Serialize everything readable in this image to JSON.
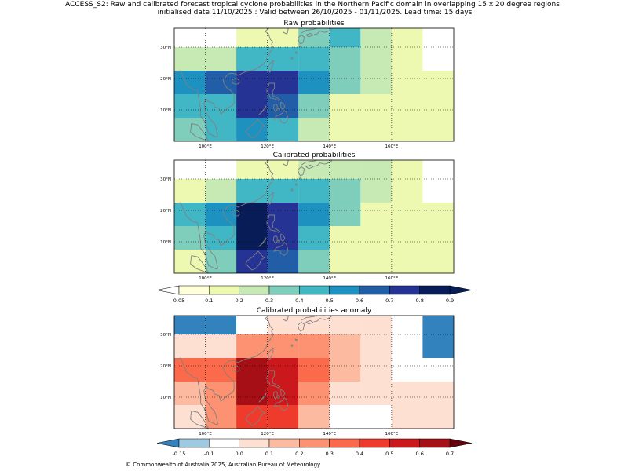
{
  "header": {
    "title_line1": "ACCESS_S2: Raw and calibrated forecast tropical cyclone probabilities in the Northern Pacific domain in overlapping 15 x 20 degree regions",
    "title_line2": "initialised date 11/10/2025 :  Valid between 26/10/2025 - 01/11/2025. Lead time: 15 days"
  },
  "footer": {
    "copyright": "© Commonwealth of Australia 2025, Australian Bureau of Meteorology"
  },
  "colors": {
    "prob_colors": [
      "#ffffd9",
      "#edf8b1",
      "#c7e9b4",
      "#7fcdbb",
      "#41b6c4",
      "#1d91c0",
      "#225ea8",
      "#253494",
      "#081d58"
    ],
    "prob_under": "#ffffff",
    "prob_over": "#081d58",
    "anom_colors": [
      "#9ecae1",
      "#ffffff",
      "#fee0d2",
      "#fcbba1",
      "#fc9272",
      "#fb6a4a",
      "#ef3b2c",
      "#cb181d",
      "#a50f15"
    ],
    "anom_under": "#3182bd",
    "anom_over": "#67000d",
    "coast": "#808080",
    "grid": "#000000"
  },
  "chart_data": [
    {
      "type": "heatmap",
      "title": "Raw probabilities",
      "xlim": [
        90,
        180
      ],
      "ylim": [
        0,
        36
      ],
      "xticks": [
        100,
        120,
        140,
        160
      ],
      "xtick_labels": [
        "100°E",
        "120°E",
        "140°E",
        "160°E"
      ],
      "yticks": [
        10,
        20,
        30
      ],
      "ytick_labels": [
        "10°N",
        "20°N",
        "30°N"
      ],
      "grid": true,
      "x_edges": [
        90,
        100,
        110,
        120,
        130,
        140,
        150,
        160,
        170,
        180
      ],
      "y_edges": [
        36,
        30,
        22.5,
        15,
        7.5,
        0
      ],
      "values": [
        [
          0.03,
          0.03,
          0.15,
          0.15,
          0.35,
          0.4,
          0.25,
          0.1,
          0.03
        ],
        [
          0.25,
          0.25,
          0.45,
          0.45,
          0.45,
          0.35,
          0.25,
          0.1,
          0.03
        ],
        [
          0.55,
          0.65,
          0.75,
          0.75,
          0.55,
          0.35,
          0.25,
          0.15,
          0.1
        ],
        [
          0.45,
          0.45,
          0.75,
          0.65,
          0.35,
          0.15,
          0.15,
          0.15,
          0.15
        ],
        [
          0.35,
          0.45,
          0.55,
          0.45,
          0.25,
          0.1,
          0.1,
          0.1,
          0.15
        ]
      ]
    },
    {
      "type": "heatmap",
      "title": "Calibrated probabilities",
      "xlim": [
        90,
        180
      ],
      "ylim": [
        0,
        36
      ],
      "xticks": [
        100,
        120,
        140,
        160
      ],
      "xtick_labels": [
        "100°E",
        "120°E",
        "140°E",
        "160°E"
      ],
      "yticks": [
        10,
        20,
        30
      ],
      "ytick_labels": [
        "10°N",
        "20°N",
        "30°N"
      ],
      "grid": true,
      "x_edges": [
        90,
        100,
        110,
        120,
        130,
        140,
        150,
        160,
        170,
        180
      ],
      "y_edges": [
        36,
        30,
        22.5,
        15,
        7.5,
        0
      ],
      "values": [
        [
          0.03,
          0.03,
          0.1,
          0.15,
          0.25,
          0.25,
          0.25,
          0.1,
          0.03
        ],
        [
          0.15,
          0.25,
          0.45,
          0.45,
          0.45,
          0.35,
          0.25,
          0.1,
          0.03
        ],
        [
          0.45,
          0.55,
          0.85,
          0.75,
          0.55,
          0.35,
          0.15,
          0.15,
          0.1
        ],
        [
          0.35,
          0.45,
          0.85,
          0.75,
          0.45,
          0.15,
          0.15,
          0.15,
          0.15
        ],
        [
          0.15,
          0.35,
          0.75,
          0.65,
          0.35,
          0.1,
          0.1,
          0.15,
          0.15
        ]
      ]
    },
    {
      "type": "heatmap",
      "title": "Calibrated probabilities anomaly",
      "xlim": [
        90,
        180
      ],
      "ylim": [
        0,
        36
      ],
      "xticks": [
        100,
        120,
        140,
        160
      ],
      "xtick_labels": [
        "100°E",
        "120°E",
        "140°E",
        "160°E"
      ],
      "yticks": [
        10,
        20,
        30
      ],
      "ytick_labels": [
        "10°N",
        "20°N",
        "30°N"
      ],
      "grid": true,
      "x_edges": [
        90,
        100,
        110,
        120,
        130,
        140,
        150,
        160,
        170,
        180
      ],
      "y_edges": [
        36,
        30,
        22.5,
        15,
        7.5,
        0
      ],
      "values": [
        [
          -0.2,
          -0.2,
          -0.1,
          0.05,
          0.05,
          0.05,
          0.05,
          -0.1,
          -0.2
        ],
        [
          0.0,
          0.05,
          0.25,
          0.25,
          0.25,
          0.15,
          0.05,
          -0.1,
          -0.2
        ],
        [
          0.35,
          0.35,
          0.65,
          0.55,
          0.35,
          0.15,
          0.0,
          -0.1,
          -0.1
        ],
        [
          0.15,
          0.25,
          0.65,
          0.55,
          0.25,
          0.0,
          0.0,
          0.0,
          0.0
        ],
        [
          0.05,
          0.25,
          0.45,
          0.45,
          0.15,
          -0.1,
          -0.1,
          0.0,
          0.0
        ]
      ]
    }
  ],
  "colorbars": [
    {
      "name": "probability",
      "levels": [
        0.05,
        0.1,
        0.2,
        0.3,
        0.4,
        0.5,
        0.6,
        0.7,
        0.8,
        0.9
      ],
      "tick_labels": [
        "0.05",
        "0.1",
        "0.2",
        "0.3",
        "0.4",
        "0.5",
        "0.6",
        "0.7",
        "0.8",
        "0.9"
      ],
      "extend": "both"
    },
    {
      "name": "anomaly",
      "levels": [
        -0.15,
        -0.1,
        0.0,
        0.1,
        0.2,
        0.3,
        0.4,
        0.5,
        0.6,
        0.7
      ],
      "tick_labels": [
        "-0.15",
        "-0.1",
        "0.0",
        "0.1",
        "0.2",
        "0.3",
        "0.4",
        "0.5",
        "0.6",
        "0.7"
      ],
      "extend": "both"
    }
  ]
}
